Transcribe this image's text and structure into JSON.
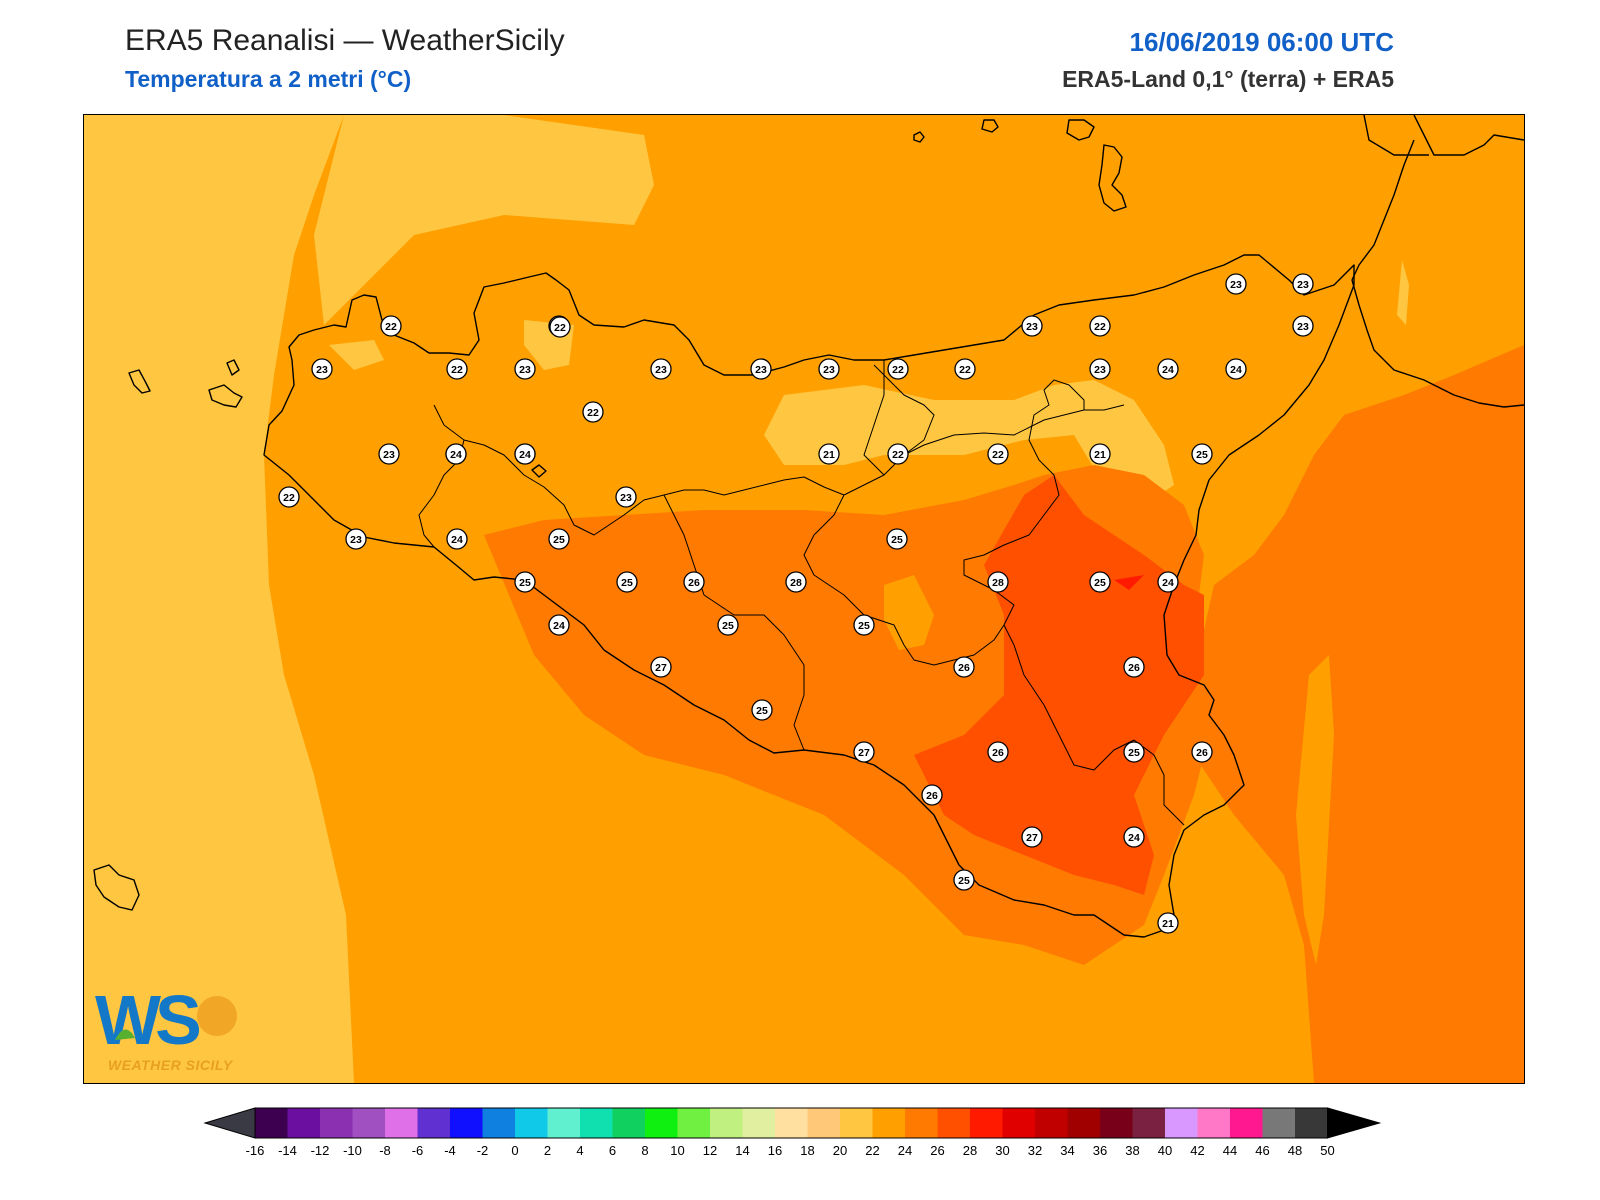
{
  "header": {
    "title": "ERA5 Reanalisi — WeatherSicily",
    "subtitle": "Temperatura a 2 metri (°C)",
    "datetime": "16/06/2019 06:00 UTC",
    "source": "ERA5-Land 0,1° (terra) + ERA5"
  },
  "logo": {
    "letters": "WS",
    "text": "WEATHER SICILY"
  },
  "colors": {
    "t20": "#ffe0a0",
    "t22": "#ffc642",
    "t24": "#ffa000",
    "t26": "#ff7a00",
    "t28": "#ff5000",
    "t30": "#ff1a00",
    "sea": "#ffc642"
  },
  "stations": [
    {
      "value": "22"
    },
    {
      "value": "22"
    },
    {
      "value": "23"
    },
    {
      "value": "22"
    },
    {
      "value": "23"
    },
    {
      "value": "23"
    },
    {
      "value": "22"
    },
    {
      "value": "23"
    },
    {
      "value": "22"
    },
    {
      "value": "23"
    },
    {
      "value": "22"
    },
    {
      "value": "23"
    },
    {
      "value": "22"
    },
    {
      "value": "23"
    },
    {
      "value": "23"
    },
    {
      "value": "22"
    },
    {
      "value": "22"
    },
    {
      "value": "23"
    },
    {
      "value": "23"
    },
    {
      "value": "24"
    },
    {
      "value": "24"
    },
    {
      "value": "23"
    },
    {
      "value": "21"
    },
    {
      "value": "22"
    },
    {
      "value": "22"
    },
    {
      "value": "21"
    },
    {
      "value": "25"
    },
    {
      "value": "22"
    },
    {
      "value": "23"
    },
    {
      "value": "23"
    },
    {
      "value": "23"
    },
    {
      "value": "24"
    },
    {
      "value": "24"
    },
    {
      "value": "24"
    },
    {
      "value": "25"
    },
    {
      "value": "25"
    },
    {
      "value": "25"
    },
    {
      "value": "25"
    },
    {
      "value": "26"
    },
    {
      "value": "28"
    },
    {
      "value": "28"
    },
    {
      "value": "25"
    },
    {
      "value": "24"
    },
    {
      "value": "24"
    },
    {
      "value": "25"
    },
    {
      "value": "25"
    },
    {
      "value": "27"
    },
    {
      "value": "25"
    },
    {
      "value": "26"
    },
    {
      "value": "26"
    },
    {
      "value": "27"
    },
    {
      "value": "26"
    },
    {
      "value": "25"
    },
    {
      "value": "26"
    },
    {
      "value": "26"
    },
    {
      "value": "27"
    },
    {
      "value": "25"
    },
    {
      "value": "24"
    },
    {
      "value": "21"
    }
  ],
  "colorbar": {
    "colors": [
      "#3d0050",
      "#6a0fa0",
      "#8a30b0",
      "#a050c0",
      "#e070e8",
      "#6030d0",
      "#1010ff",
      "#1080e0",
      "#10c8e8",
      "#60f0d0",
      "#10e0b0",
      "#10d060",
      "#10f010",
      "#70f040",
      "#c0f080",
      "#e0f0a0",
      "#ffe0a0",
      "#ffc878",
      "#ffc642",
      "#ffa000",
      "#ff7a00",
      "#ff5000",
      "#ff1a00",
      "#e00000",
      "#c00000",
      "#a00000",
      "#780018",
      "#7a2040",
      "#d898ff",
      "#ff78c8",
      "#ff1890",
      "#787878",
      "#383838"
    ],
    "ticks": [
      "-16",
      "-14",
      "-12",
      "-10",
      "-8",
      "-6",
      "-4",
      "-2",
      "0",
      "2",
      "4",
      "6",
      "8",
      "10",
      "12",
      "14",
      "16",
      "18",
      "20",
      "22",
      "24",
      "26",
      "28",
      "30",
      "32",
      "34",
      "36",
      "38",
      "40",
      "42",
      "44",
      "46",
      "48",
      "50"
    ]
  }
}
